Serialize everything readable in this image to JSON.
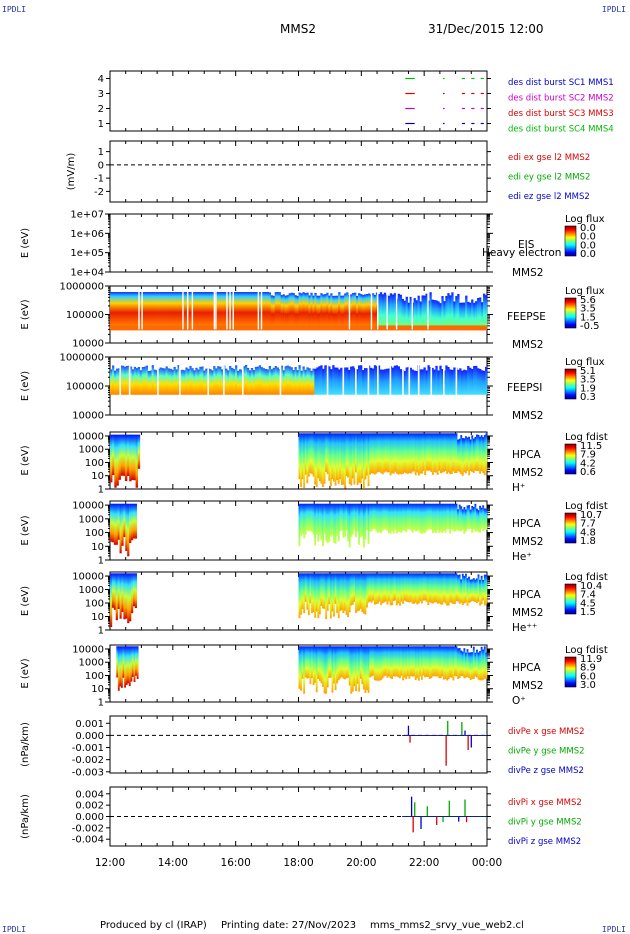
{
  "corners": {
    "tl": "IPDLI",
    "tr": "IPDLI",
    "bl": "IPDLI",
    "br": "IPDLI"
  },
  "header": {
    "spacecraft": "MMS2",
    "datetime": "31/Dec/2015 12:00"
  },
  "footer": {
    "produced": "Produced by cl (IRAP)",
    "printing": "Printing date: 27/Nov/2023",
    "file": "mms_mms2_srvy_vue_web2.cl"
  },
  "chart_data": {
    "type": "multi-panel-timeseries",
    "x_ticks": [
      "12:00",
      "14:00",
      "16:00",
      "18:00",
      "20:00",
      "22:00",
      "00:00"
    ],
    "x_range_hours": [
      12,
      24
    ],
    "panels": [
      {
        "id": "burst",
        "type": "timeline",
        "ylabel": "",
        "yticks": [
          "4",
          "3",
          "2",
          "1"
        ],
        "ylim": [
          0.5,
          4.5
        ],
        "legend": [
          {
            "label": "des dist burst SC1 MMS1",
            "color": "#0000cc"
          },
          {
            "label": "des dist burst SC2 MMS2",
            "color": "#cc00cc"
          },
          {
            "label": "des dist burst SC3 MMS3",
            "color": "#dd0000"
          },
          {
            "label": "des dist burst SC4 MMS4",
            "color": "#00bb00"
          }
        ],
        "series": [
          {
            "row": 4,
            "color": "#00bb00",
            "intervals": [
              [
                21.4,
                21.7
              ],
              [
                22.6,
                22.65
              ],
              [
                23.2,
                23.3
              ],
              [
                23.5,
                23.6
              ],
              [
                23.8,
                23.9
              ]
            ]
          },
          {
            "row": 3,
            "color": "#dd0000",
            "intervals": [
              [
                21.4,
                21.7
              ],
              [
                22.6,
                22.65
              ],
              [
                23.2,
                23.3
              ],
              [
                23.5,
                23.6
              ],
              [
                23.8,
                23.9
              ]
            ]
          },
          {
            "row": 2,
            "color": "#cc00cc",
            "intervals": [
              [
                21.4,
                21.7
              ],
              [
                22.6,
                22.65
              ],
              [
                23.2,
                23.3
              ],
              [
                23.5,
                23.6
              ],
              [
                23.8,
                23.9
              ]
            ]
          },
          {
            "row": 1,
            "color": "#0000cc",
            "intervals": [
              [
                21.4,
                21.7
              ],
              [
                22.6,
                22.65
              ],
              [
                23.2,
                23.3
              ],
              [
                23.5,
                23.6
              ],
              [
                23.8,
                23.9
              ]
            ]
          }
        ]
      },
      {
        "id": "edi",
        "type": "line",
        "ylabel": "(mV/m)",
        "yticks": [
          "1",
          "0",
          "-1",
          "-2"
        ],
        "ylim": [
          -2.8,
          1.8
        ],
        "tick_values": [
          1,
          0,
          -1,
          -2
        ],
        "legend": [
          {
            "label": "edi ex gse l2 MMS2",
            "color": "#dd0000"
          },
          {
            "label": "edi ey gse l2 MMS2",
            "color": "#00aa00"
          },
          {
            "label": "edi ez gse l2 MMS2",
            "color": "#0000cc"
          }
        ]
      },
      {
        "id": "eis",
        "type": "spectrogram",
        "ylabel": "E (eV)",
        "yticks": [
          "1e+07",
          "1e+06",
          "1e+05",
          "1e+04"
        ],
        "log_ylim": [
          4,
          7
        ],
        "label_lines": [
          "EIS",
          "MMS2"
        ],
        "overlay": "Heavy electron to",
        "colorbar": {
          "title": "Log flux",
          "ticks": [
            "0.0",
            "0.0",
            "0.0",
            "0.0"
          ]
        }
      },
      {
        "id": "feeps_e",
        "type": "spectrogram",
        "ylabel": "E (eV)",
        "yticks": [
          "1000000",
          "100000",
          "10000"
        ],
        "log_ylim": [
          4,
          6
        ],
        "label_lines": [
          "FEEPSE",
          "MMS2"
        ],
        "colorbar": {
          "title": "Log flux",
          "ticks": [
            "5.6",
            "3.5",
            "1.5",
            "-0.5"
          ]
        }
      },
      {
        "id": "feeps_i",
        "type": "spectrogram",
        "ylabel": "E (eV)",
        "yticks": [
          "1000000",
          "100000",
          "10000"
        ],
        "log_ylim": [
          4,
          6
        ],
        "label_lines": [
          "FEEPSI",
          "MMS2"
        ],
        "colorbar": {
          "title": "Log flux",
          "ticks": [
            "5.1",
            "3.5",
            "1.9",
            "0.3"
          ]
        }
      },
      {
        "id": "hpca_h",
        "type": "spectrogram",
        "ylabel": "E (eV)",
        "yticks": [
          "10000",
          "1000",
          "100",
          "10",
          "1"
        ],
        "log_ylim": [
          0,
          4.3
        ],
        "label_lines": [
          "HPCA",
          "MMS2",
          "H⁺"
        ],
        "colorbar": {
          "title": "Log fdist",
          "ticks": [
            "11.5",
            "7.9",
            "4.2",
            "0.6"
          ]
        }
      },
      {
        "id": "hpca_he",
        "type": "spectrogram",
        "ylabel": "E (eV)",
        "yticks": [
          "10000",
          "1000",
          "100",
          "10",
          "1"
        ],
        "log_ylim": [
          0,
          4.3
        ],
        "label_lines": [
          "HPCA",
          "MMS2",
          "He⁺"
        ],
        "colorbar": {
          "title": "Log fdist",
          "ticks": [
            "10.7",
            "7.7",
            "4.8",
            "1.8"
          ]
        }
      },
      {
        "id": "hpca_hepp",
        "type": "spectrogram",
        "ylabel": "E (eV)",
        "yticks": [
          "10000",
          "1000",
          "100",
          "10",
          "1"
        ],
        "log_ylim": [
          0,
          4.3
        ],
        "label_lines": [
          "HPCA",
          "MMS2",
          "He⁺⁺"
        ],
        "colorbar": {
          "title": "Log fdist",
          "ticks": [
            "10.4",
            "7.4",
            "4.5",
            "1.5"
          ]
        }
      },
      {
        "id": "hpca_o",
        "type": "spectrogram",
        "ylabel": "E (eV)",
        "yticks": [
          "10000",
          "1000",
          "100",
          "10",
          "1"
        ],
        "log_ylim": [
          0,
          4.3
        ],
        "label_lines": [
          "HPCA",
          "MMS2",
          "O⁺"
        ],
        "colorbar": {
          "title": "Log fdist",
          "ticks": [
            "11.9",
            "8.9",
            "6.0",
            "3.0"
          ]
        }
      },
      {
        "id": "divpe",
        "type": "line",
        "ylabel": "(nPa/km)",
        "yticks": [
          "0.001",
          "0.000",
          "-0.001",
          "-0.002",
          "-0.003"
        ],
        "tick_values": [
          0.001,
          0.0,
          -0.001,
          -0.002,
          -0.003
        ],
        "ylim": [
          -0.0031,
          0.0016
        ],
        "legend": [
          {
            "label": "divPe x gse MMS2",
            "color": "#dd0000"
          },
          {
            "label": "divPe y gse MMS2",
            "color": "#00aa00"
          },
          {
            "label": "divPe z gse MMS2",
            "color": "#0000cc"
          }
        ]
      },
      {
        "id": "divpi",
        "type": "line",
        "ylabel": "(nPa/km)",
        "yticks": [
          "0.004",
          "0.002",
          "0.000",
          "-0.002",
          "-0.004"
        ],
        "tick_values": [
          0.004,
          0.002,
          0.0,
          -0.002,
          -0.004
        ],
        "ylim": [
          -0.0052,
          0.0052
        ],
        "legend": [
          {
            "label": "divPi x gse MMS2",
            "color": "#dd0000"
          },
          {
            "label": "divPi y gse MMS2",
            "color": "#00aa00"
          },
          {
            "label": "divPi z gse MMS2",
            "color": "#0000cc"
          }
        ]
      }
    ]
  }
}
